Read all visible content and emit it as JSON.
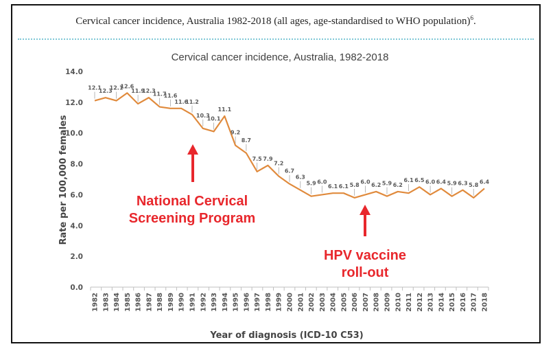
{
  "caption": {
    "text": "Cervical cancer incidence, Australia 1982-2018 (all ages, age-standardised to WHO population)",
    "superscript": "6",
    "suffix": "."
  },
  "colors": {
    "line": "#e08a3c",
    "annotation": "#e8272c",
    "axis": "#bfbfbf",
    "divider": "#7ec8d6"
  },
  "chart_data": {
    "type": "line",
    "title": "Cervical cancer incidence, Australia, 1982-2018",
    "xlabel": "Year of diagnosis (ICD-10 C53)",
    "ylabel": "Rate per 100,000 females",
    "ylim": [
      0,
      14
    ],
    "yticks": [
      "0.0",
      "2.0",
      "4.0",
      "6.0",
      "8.0",
      "10.0",
      "12.0",
      "14.0"
    ],
    "grid": false,
    "x": [
      "1982",
      "1983",
      "1984",
      "1985",
      "1986",
      "1987",
      "1988",
      "1989",
      "1990",
      "1991",
      "1992",
      "1993",
      "1994",
      "1995",
      "1996",
      "1997",
      "1998",
      "1999",
      "2000",
      "2001",
      "2002",
      "2003",
      "2004",
      "2005",
      "2006",
      "2007",
      "2008",
      "2009",
      "2010",
      "2011",
      "2012",
      "2013",
      "2014",
      "2015",
      "2016",
      "2017",
      "2018"
    ],
    "series": [
      {
        "values": [
          12.1,
          12.3,
          12.1,
          12.6,
          11.9,
          12.3,
          11.7,
          11.6,
          11.6,
          11.2,
          10.3,
          10.1,
          11.1,
          9.2,
          8.7,
          7.5,
          7.9,
          7.2,
          6.7,
          6.3,
          5.9,
          6.0,
          6.1,
          6.1,
          5.8,
          6.0,
          6.2,
          5.9,
          6.2,
          6.1,
          6.5,
          6.0,
          6.4,
          5.9,
          6.3,
          5.8,
          6.4
        ]
      }
    ],
    "annotations": [
      {
        "lines": [
          "National Cervical",
          "Screening Program"
        ],
        "year": "1991"
      },
      {
        "lines": [
          "HPV vaccine",
          "roll-out"
        ],
        "year": "2007"
      }
    ]
  }
}
